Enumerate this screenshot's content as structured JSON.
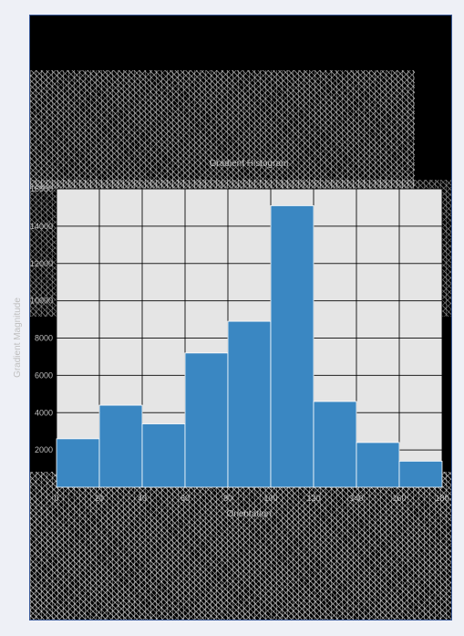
{
  "chart_data": {
    "type": "bar",
    "title": "Gradient Histogram",
    "xlabel": "Orientation",
    "ylabel": "Gradient Magnitude",
    "x_bin_edges": [
      0,
      20,
      40,
      60,
      80,
      100,
      120,
      140,
      160,
      180
    ],
    "x_tick_labels": [
      "0",
      "20",
      "40",
      "60",
      "80",
      "100",
      "120",
      "140",
      "160",
      "180"
    ],
    "values": [
      2600,
      4400,
      3400,
      7200,
      8900,
      15100,
      4600,
      2400,
      1400
    ],
    "ylim": [
      0,
      16000
    ],
    "y_ticks": [
      2000,
      4000,
      6000,
      8000,
      10000,
      12000,
      14000,
      16000
    ],
    "y_tick_labels": [
      "2000",
      "4000",
      "6000",
      "8000",
      "10000",
      "12000",
      "14000",
      "16000"
    ],
    "grid": true,
    "bar_color": "#3a87c2",
    "plot_background": "#e5e5e5",
    "grid_color": "#000000"
  }
}
